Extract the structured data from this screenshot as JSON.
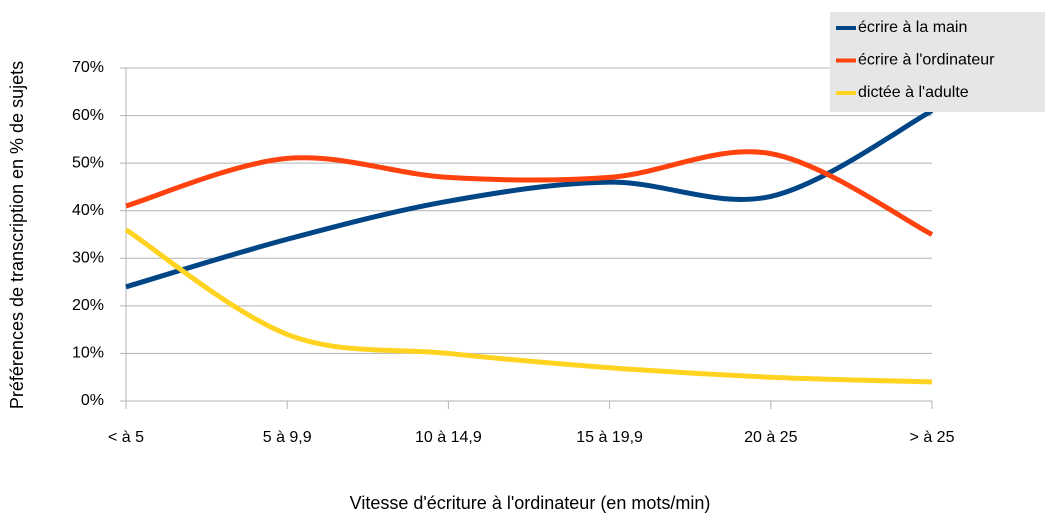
{
  "chart_data": {
    "type": "line",
    "x_label": "Vitesse d'écriture à l'ordinateur (en mots/min)",
    "y_label": "Préférences de transcription en % de sujets",
    "categories": [
      "< à 5",
      "5 à 9,9",
      "10 à 14,9",
      "15 à 19,9",
      "20 à 25",
      "> à 25"
    ],
    "series": [
      {
        "name": "écrire à la main",
        "color": "#004586",
        "values": [
          24,
          34,
          42,
          46,
          43,
          61
        ]
      },
      {
        "name": "écrire à l'ordinateur",
        "color": "#ff420e",
        "values": [
          41,
          51,
          47,
          47,
          52,
          35
        ]
      },
      {
        "name": "dictée à l'adulte",
        "color": "#ffd320",
        "values": [
          36,
          14,
          10,
          7,
          5,
          4
        ]
      }
    ],
    "ylim": [
      0,
      70
    ],
    "yticks": [
      {
        "value": 0,
        "label": "0%"
      },
      {
        "value": 10,
        "label": "10%"
      },
      {
        "value": 20,
        "label": "20%"
      },
      {
        "value": 30,
        "label": "30%"
      },
      {
        "value": 40,
        "label": "40%"
      },
      {
        "value": 50,
        "label": "50%"
      },
      {
        "value": 60,
        "label": "60%"
      },
      {
        "value": 70,
        "label": "70%"
      }
    ],
    "grid": true,
    "legend": "top-right"
  }
}
